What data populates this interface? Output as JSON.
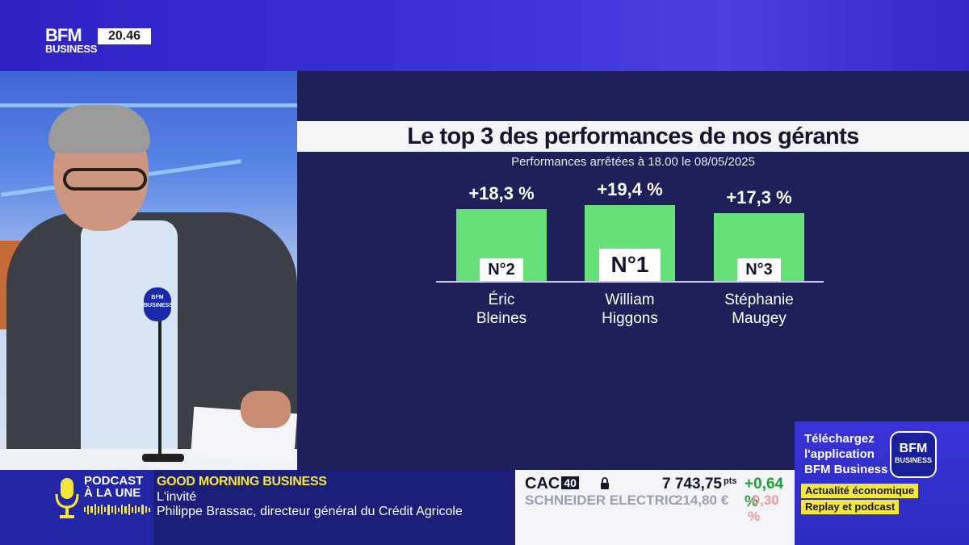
{
  "brand": {
    "logo_line1": "BFM",
    "logo_line2": "BUSINESS",
    "time": "20.46"
  },
  "studio": {
    "mic_label": "BFM BUSINESS"
  },
  "graphic": {
    "title": "Le top 3 des performances de nos gérants",
    "subtitle": "Performances arrêtées à 18.00 le 08/05/2025",
    "bar_color": "#67e07a",
    "podium": [
      {
        "rank": "N°2",
        "value": "+18,3 %",
        "name_line1": "Éric",
        "name_line2": "Bleines"
      },
      {
        "rank": "N°1",
        "value": "+19,4 %",
        "name_line1": "William",
        "name_line2": "Higgons"
      },
      {
        "rank": "N°3",
        "value": "+17,3 %",
        "name_line1": "Stéphanie",
        "name_line2": "Maugey"
      }
    ]
  },
  "chart_data": {
    "type": "bar",
    "title": "Le top 3 des performances de nos gérants",
    "subtitle": "Performances arrêtées à 18.00 le 08/05/2025",
    "categories": [
      "Éric Bleines",
      "William Higgons",
      "Stéphanie Maugey"
    ],
    "values": [
      18.3,
      19.4,
      17.3
    ],
    "xlabel": "",
    "ylabel": "",
    "unit": "%",
    "grid": false
  },
  "promo": {
    "line1": "Téléchargez",
    "line2": "l'application",
    "line3": "BFM Business",
    "logo_line1": "BFM",
    "logo_line2": "BUSINESS",
    "tag1": "Actualité économique",
    "tag2": "Replay et podcast",
    "tag_color": "#f4e73a"
  },
  "ticker": {
    "podcast_line1": "PODCAST",
    "podcast_line2": "À LA UNE",
    "show": "GOOD MORNING BUSINESS",
    "segment": "L'invité",
    "guest": "Philippe Brassac, directeur général du Crédit Agricole"
  },
  "market": {
    "index_name": "CAC",
    "index_num": "40",
    "index_value": "7 743,75",
    "index_unit": "pts",
    "index_change": "+0,64 %",
    "stock_name": "SCHNEIDER ELECTRIC",
    "stock_value": "214,80 €",
    "stock_change": "-0,30 %"
  }
}
